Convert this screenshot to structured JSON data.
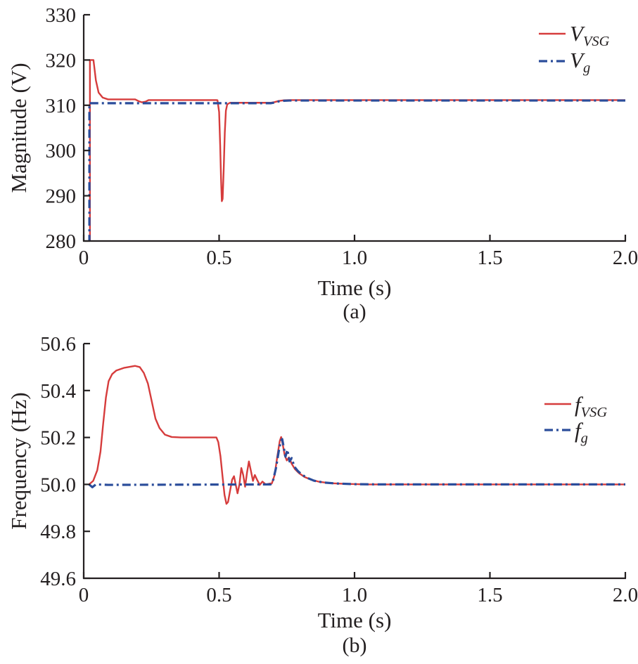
{
  "chart_data": [
    {
      "type": "line",
      "title": "",
      "xlabel": "Time (s)",
      "ylabel": "Magnitude (V)",
      "sublabel": "(a)",
      "xlim": [
        0,
        2.0
      ],
      "ylim": [
        280,
        330
      ],
      "xticks": [
        0,
        0.5,
        1.0,
        1.5,
        2.0
      ],
      "xtick_labels": [
        "0",
        "0.5",
        "1.0",
        "1.5",
        "2.0"
      ],
      "yticks": [
        280,
        290,
        300,
        310,
        320,
        330
      ],
      "ytick_labels": [
        "280",
        "290",
        "300",
        "310",
        "320",
        "330"
      ],
      "grid": false,
      "legend_position": "top-right-inside",
      "axis_color": "#231f20",
      "series": [
        {
          "name": "V_VSG",
          "label_main": "V",
          "label_sub": "VSG",
          "color": "#d63c3c",
          "style": "solid",
          "points": [
            [
              0.023,
              279.5
            ],
            [
              0.023,
              320
            ],
            [
              0.036,
              320
            ],
            [
              0.045,
              315.5
            ],
            [
              0.055,
              312.8
            ],
            [
              0.07,
              311.7
            ],
            [
              0.09,
              311.3
            ],
            [
              0.19,
              311.3
            ],
            [
              0.203,
              310.9
            ],
            [
              0.215,
              310.65
            ],
            [
              0.228,
              310.8
            ],
            [
              0.24,
              311.15
            ],
            [
              0.49,
              311.15
            ],
            [
              0.494,
              311.1
            ],
            [
              0.5,
              308.5
            ],
            [
              0.504,
              301
            ],
            [
              0.507,
              294
            ],
            [
              0.51,
              288.8
            ],
            [
              0.513,
              289.3
            ],
            [
              0.517,
              296
            ],
            [
              0.521,
              304
            ],
            [
              0.525,
              308.8
            ],
            [
              0.53,
              310.2
            ],
            [
              0.54,
              310.55
            ],
            [
              0.69,
              310.55
            ],
            [
              0.705,
              310.7
            ],
            [
              0.72,
              310.95
            ],
            [
              0.74,
              311.1
            ],
            [
              0.76,
              311.15
            ],
            [
              2.0,
              311.15
            ]
          ]
        },
        {
          "name": "V_g",
          "label_main": "V",
          "label_sub": "g",
          "color": "#2b4d9b",
          "style": "dashdot",
          "points": [
            [
              0.021,
              279.5
            ],
            [
              0.021,
              310.45
            ],
            [
              0.69,
              310.45
            ],
            [
              0.705,
              310.6
            ],
            [
              0.72,
              310.85
            ],
            [
              0.74,
              311.0
            ],
            [
              0.76,
              311.05
            ],
            [
              2.0,
              311.05
            ]
          ]
        }
      ]
    },
    {
      "type": "line",
      "title": "",
      "xlabel": "Time (s)",
      "ylabel": "Frequency (Hz)",
      "sublabel": "(b)",
      "xlim": [
        0,
        2.0
      ],
      "ylim": [
        49.6,
        50.6
      ],
      "xticks": [
        0,
        0.5,
        1.0,
        1.5,
        2.0
      ],
      "xtick_labels": [
        "0",
        "0.5",
        "1.0",
        "1.5",
        "2.0"
      ],
      "yticks": [
        49.6,
        49.8,
        50.0,
        50.2,
        50.4,
        50.6
      ],
      "ytick_labels": [
        "49.6",
        "49.8",
        "50.0",
        "50.2",
        "50.4",
        "50.6"
      ],
      "grid": false,
      "legend_position": "top-right-inside",
      "axis_color": "#231f20",
      "series": [
        {
          "name": "f_VSG",
          "label_main": "f",
          "label_sub": "VSG",
          "color": "#d63c3c",
          "style": "solid",
          "points": [
            [
              0.02,
              50.0
            ],
            [
              0.035,
              50.015
            ],
            [
              0.05,
              50.06
            ],
            [
              0.062,
              50.14
            ],
            [
              0.072,
              50.26
            ],
            [
              0.082,
              50.37
            ],
            [
              0.092,
              50.44
            ],
            [
              0.105,
              50.47
            ],
            [
              0.12,
              50.485
            ],
            [
              0.15,
              50.497
            ],
            [
              0.19,
              50.505
            ],
            [
              0.207,
              50.5
            ],
            [
              0.222,
              50.475
            ],
            [
              0.237,
              50.43
            ],
            [
              0.252,
              50.35
            ],
            [
              0.265,
              50.28
            ],
            [
              0.28,
              50.24
            ],
            [
              0.3,
              50.212
            ],
            [
              0.325,
              50.202
            ],
            [
              0.36,
              50.2
            ],
            [
              0.49,
              50.2
            ],
            [
              0.497,
              50.18
            ],
            [
              0.505,
              50.12
            ],
            [
              0.513,
              50.03
            ],
            [
              0.52,
              49.955
            ],
            [
              0.527,
              49.917
            ],
            [
              0.533,
              49.925
            ],
            [
              0.54,
              49.97
            ],
            [
              0.548,
              50.02
            ],
            [
              0.555,
              50.035
            ],
            [
              0.562,
              49.995
            ],
            [
              0.568,
              49.962
            ],
            [
              0.575,
              50.0
            ],
            [
              0.582,
              50.07
            ],
            [
              0.589,
              50.04
            ],
            [
              0.596,
              49.99
            ],
            [
              0.603,
              50.05
            ],
            [
              0.61,
              50.098
            ],
            [
              0.617,
              50.06
            ],
            [
              0.625,
              50.015
            ],
            [
              0.632,
              50.04
            ],
            [
              0.64,
              50.02
            ],
            [
              0.65,
              49.998
            ],
            [
              0.66,
              50.012
            ],
            [
              0.672,
              50.0
            ],
            [
              0.695,
              50.005
            ],
            [
              0.705,
              50.04
            ],
            [
              0.715,
              50.12
            ],
            [
              0.724,
              50.185
            ],
            [
              0.729,
              50.202
            ],
            [
              0.735,
              50.17
            ],
            [
              0.742,
              50.125
            ],
            [
              0.75,
              50.102
            ],
            [
              0.758,
              50.115
            ],
            [
              0.768,
              50.088
            ],
            [
              0.78,
              50.065
            ],
            [
              0.795,
              50.048
            ],
            [
              0.815,
              50.032
            ],
            [
              0.84,
              50.02
            ],
            [
              0.87,
              50.011
            ],
            [
              0.91,
              50.005
            ],
            [
              0.97,
              50.002
            ],
            [
              1.05,
              50.0
            ],
            [
              2.0,
              50.0
            ]
          ]
        },
        {
          "name": "f_g",
          "label_main": "f",
          "label_sub": "g",
          "color": "#2b4d9b",
          "style": "dashdot",
          "points": [
            [
              0.02,
              50.0
            ],
            [
              0.032,
              49.988
            ],
            [
              0.045,
              50.0
            ],
            [
              0.09,
              49.998
            ],
            [
              0.69,
              50.0
            ],
            [
              0.7,
              50.02
            ],
            [
              0.71,
              50.07
            ],
            [
              0.72,
              50.14
            ],
            [
              0.728,
              50.185
            ],
            [
              0.733,
              50.193
            ],
            [
              0.739,
              50.155
            ],
            [
              0.745,
              50.118
            ],
            [
              0.752,
              50.148
            ],
            [
              0.76,
              50.098
            ],
            [
              0.768,
              50.112
            ],
            [
              0.778,
              50.075
            ],
            [
              0.79,
              50.058
            ],
            [
              0.805,
              50.042
            ],
            [
              0.825,
              50.028
            ],
            [
              0.85,
              50.016
            ],
            [
              0.885,
              50.008
            ],
            [
              0.93,
              50.004
            ],
            [
              1.0,
              50.001
            ],
            [
              1.1,
              50.0
            ],
            [
              2.0,
              50.0
            ]
          ]
        }
      ]
    }
  ]
}
